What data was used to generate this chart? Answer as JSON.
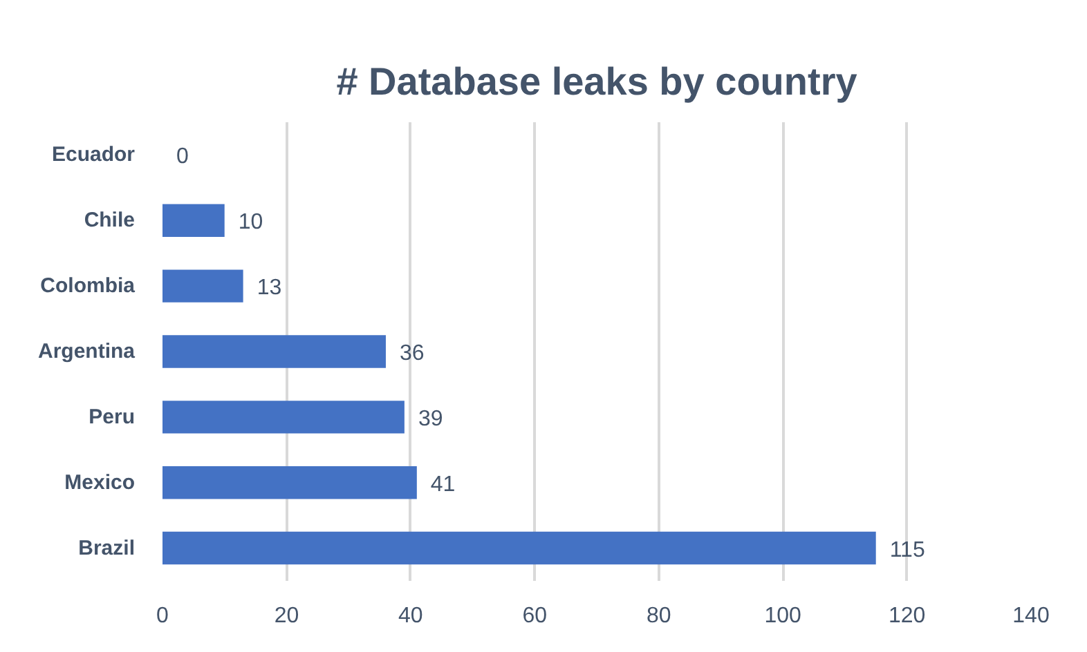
{
  "chart_data": {
    "type": "bar",
    "orientation": "horizontal",
    "title": "# Database leaks by country",
    "categories": [
      "Ecuador",
      "Chile",
      "Colombia",
      "Argentina",
      "Peru",
      "Mexico",
      "Brazil"
    ],
    "values": [
      0,
      10,
      13,
      36,
      39,
      41,
      115
    ],
    "color": "#4472c4",
    "xlim": [
      0,
      140
    ],
    "xticks": [
      0,
      20,
      40,
      60,
      80,
      100,
      120,
      140
    ],
    "grid": "x",
    "data_labels": true
  }
}
